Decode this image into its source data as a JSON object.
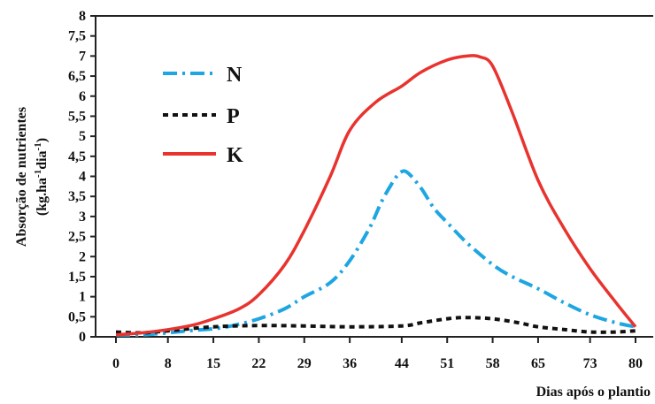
{
  "chart_data": {
    "type": "line",
    "xlabel": "Dias após o plantio",
    "ylabel": "Absorção de nutrientes",
    "ylabel_units": {
      "prefix": "(kg.ha",
      "sup1": "-1",
      "mid": "dia",
      "sup2": "-1",
      "suffix": ")"
    },
    "categories": [
      "0",
      "8",
      "15",
      "22",
      "29",
      "36",
      "44",
      "51",
      "58",
      "65",
      "73",
      "80"
    ],
    "y_ticks": [
      "0",
      "0,5",
      "1",
      "1,5",
      "2",
      "2,5",
      "3",
      "3,5",
      "4",
      "4,5",
      "5",
      "5,5",
      "6",
      "6,5",
      "7",
      "7,5",
      "8"
    ],
    "ylim": [
      0,
      8
    ],
    "x_domain": [
      0,
      80
    ],
    "grid": false,
    "legend_position": "top-left",
    "series": [
      {
        "name": "N",
        "color": "#1ea6e2",
        "dash": "dash-dot",
        "x": [
          0,
          4,
          8,
          11,
          15,
          18,
          22,
          26,
          29,
          33,
          36,
          39,
          41,
          43,
          44,
          45,
          47,
          49,
          51,
          54,
          58,
          61,
          65,
          69,
          73,
          77,
          80
        ],
        "y": [
          0.05,
          0.05,
          0.1,
          0.15,
          0.2,
          0.28,
          0.45,
          0.7,
          1.0,
          1.35,
          1.9,
          2.7,
          3.4,
          3.95,
          4.12,
          4.08,
          3.7,
          3.2,
          2.85,
          2.35,
          1.8,
          1.5,
          1.2,
          0.85,
          0.55,
          0.35,
          0.25
        ]
      },
      {
        "name": "P",
        "color": "#111111",
        "dash": "dotted",
        "x": [
          0,
          4,
          8,
          15,
          22,
          29,
          36,
          44,
          47,
          51,
          54,
          58,
          62,
          65,
          69,
          73,
          77,
          80
        ],
        "y": [
          0.12,
          0.1,
          0.15,
          0.25,
          0.28,
          0.27,
          0.25,
          0.27,
          0.35,
          0.45,
          0.48,
          0.45,
          0.35,
          0.25,
          0.18,
          0.12,
          0.12,
          0.15
        ]
      },
      {
        "name": "K",
        "color": "#e8332e",
        "dash": "solid",
        "x": [
          0,
          4,
          8,
          12,
          15,
          19,
          22,
          26,
          29,
          33,
          36,
          40,
          44,
          47,
          51,
          54,
          56,
          58,
          61,
          65,
          69,
          73,
          77,
          80
        ],
        "y": [
          0.05,
          0.1,
          0.18,
          0.3,
          0.45,
          0.7,
          1.05,
          1.8,
          2.65,
          4.0,
          5.15,
          5.85,
          6.25,
          6.6,
          6.9,
          7.0,
          6.98,
          6.75,
          5.6,
          3.9,
          2.7,
          1.7,
          0.85,
          0.25
        ]
      }
    ]
  }
}
